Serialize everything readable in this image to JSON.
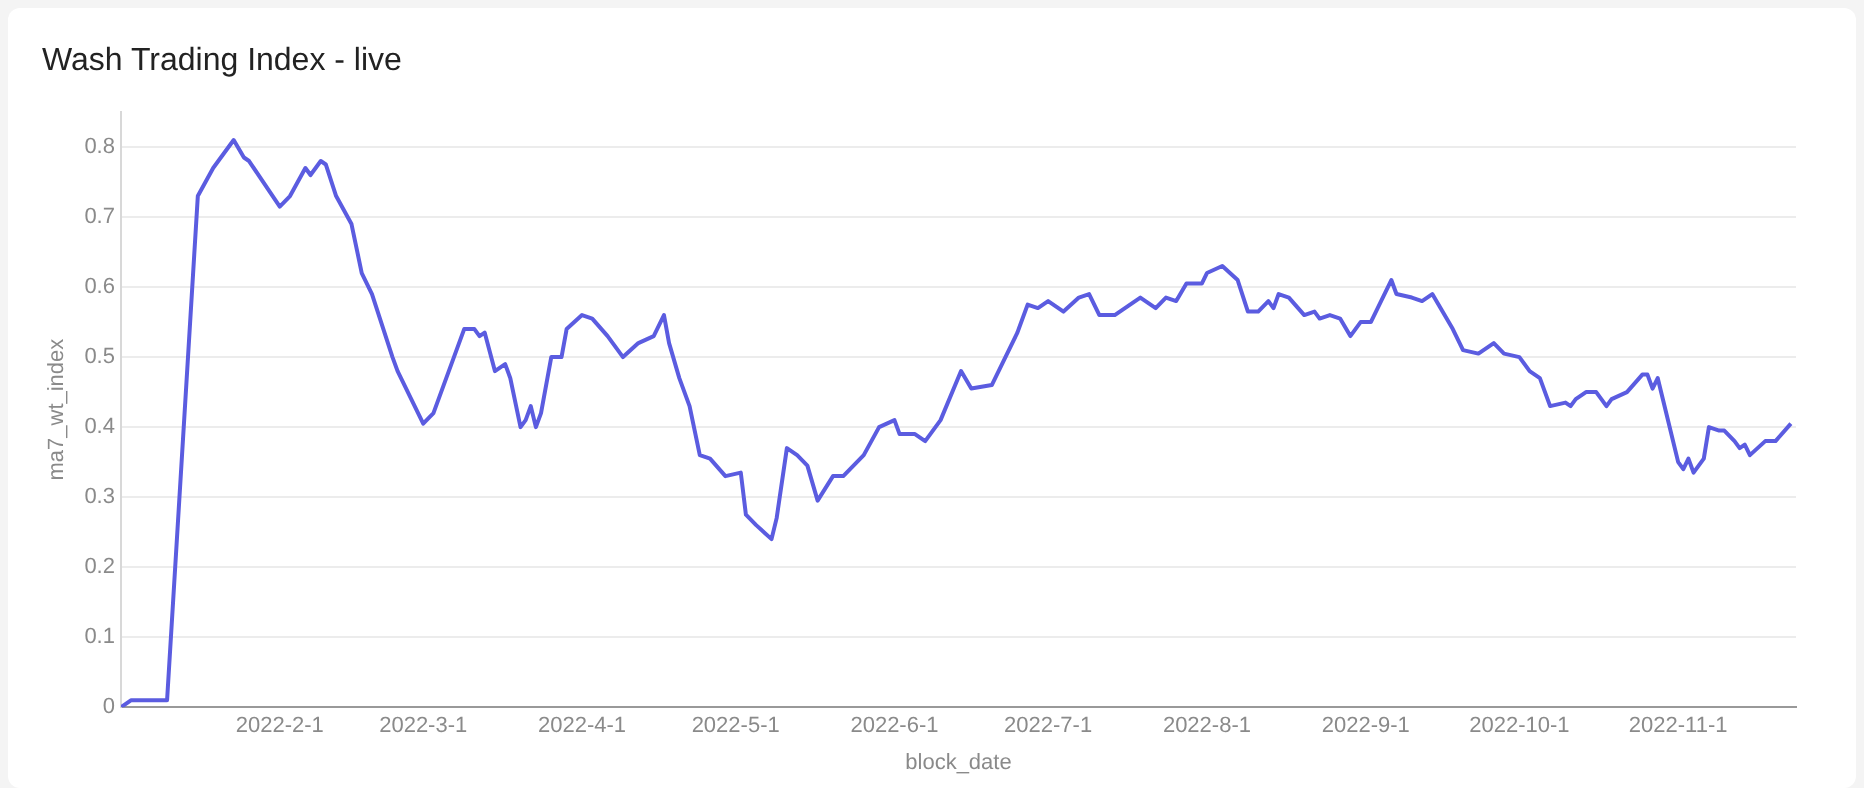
{
  "chart_data": {
    "type": "line",
    "title": "Wash Trading Index - live",
    "xlabel": "block_date",
    "ylabel": "ma7_wt_index",
    "x": [
      "2022-01-01",
      "2022-01-03",
      "2022-01-06",
      "2022-01-10",
      "2022-01-16",
      "2022-01-19",
      "2022-01-20",
      "2022-01-23",
      "2022-01-25",
      "2022-01-26",
      "2022-02-01",
      "2022-02-03",
      "2022-02-06",
      "2022-02-07",
      "2022-02-09",
      "2022-02-10",
      "2022-02-12",
      "2022-02-15",
      "2022-02-17",
      "2022-02-19",
      "2022-02-23",
      "2022-02-24",
      "2022-03-01",
      "2022-03-03",
      "2022-03-07",
      "2022-03-09",
      "2022-03-11",
      "2022-03-12",
      "2022-03-13",
      "2022-03-15",
      "2022-03-17",
      "2022-03-18",
      "2022-03-20",
      "2022-03-21",
      "2022-03-22",
      "2022-03-23",
      "2022-03-24",
      "2022-03-26",
      "2022-03-28",
      "2022-03-29",
      "2022-04-01",
      "2022-04-03",
      "2022-04-06",
      "2022-04-09",
      "2022-04-12",
      "2022-04-15",
      "2022-04-17",
      "2022-04-18",
      "2022-04-20",
      "2022-04-22",
      "2022-04-24",
      "2022-04-26",
      "2022-04-29",
      "2022-05-02",
      "2022-05-03",
      "2022-05-05",
      "2022-05-08",
      "2022-05-09",
      "2022-05-11",
      "2022-05-13",
      "2022-05-15",
      "2022-05-17",
      "2022-05-20",
      "2022-05-22",
      "2022-05-24",
      "2022-05-26",
      "2022-05-29",
      "2022-06-01",
      "2022-06-02",
      "2022-06-05",
      "2022-06-07",
      "2022-06-10",
      "2022-06-14",
      "2022-06-16",
      "2022-06-20",
      "2022-06-22",
      "2022-06-25",
      "2022-06-27",
      "2022-06-29",
      "2022-07-01",
      "2022-07-04",
      "2022-07-07",
      "2022-07-09",
      "2022-07-11",
      "2022-07-14",
      "2022-07-19",
      "2022-07-22",
      "2022-07-24",
      "2022-07-26",
      "2022-07-28",
      "2022-07-31",
      "2022-08-01",
      "2022-08-04",
      "2022-08-07",
      "2022-08-09",
      "2022-08-11",
      "2022-08-13",
      "2022-08-14",
      "2022-08-15",
      "2022-08-17",
      "2022-08-20",
      "2022-08-22",
      "2022-08-23",
      "2022-08-25",
      "2022-08-27",
      "2022-08-29",
      "2022-08-31",
      "2022-09-02",
      "2022-09-04",
      "2022-09-06",
      "2022-09-07",
      "2022-09-10",
      "2022-09-12",
      "2022-09-14",
      "2022-09-18",
      "2022-09-20",
      "2022-09-23",
      "2022-09-26",
      "2022-09-28",
      "2022-10-01",
      "2022-10-03",
      "2022-10-05",
      "2022-10-07",
      "2022-10-10",
      "2022-10-11",
      "2022-10-12",
      "2022-10-14",
      "2022-10-16",
      "2022-10-18",
      "2022-10-19",
      "2022-10-22",
      "2022-10-25",
      "2022-10-26",
      "2022-10-27",
      "2022-10-28",
      "2022-10-29",
      "2022-11-01",
      "2022-11-02",
      "2022-11-03",
      "2022-11-04",
      "2022-11-06",
      "2022-11-07",
      "2022-11-09",
      "2022-11-10",
      "2022-11-12",
      "2022-11-13",
      "2022-11-14",
      "2022-11-15",
      "2022-11-18",
      "2022-11-20",
      "2022-11-23"
    ],
    "series": [
      {
        "color": "#5b5ce0",
        "values": [
          0,
          0.01,
          0.01,
          0.01,
          0.73,
          0.77,
          0.78,
          0.81,
          0.785,
          0.78,
          0.715,
          0.73,
          0.77,
          0.76,
          0.78,
          0.775,
          0.73,
          0.69,
          0.62,
          0.59,
          0.5,
          0.48,
          0.405,
          0.42,
          0.5,
          0.54,
          0.54,
          0.53,
          0.535,
          0.48,
          0.49,
          0.47,
          0.4,
          0.41,
          0.43,
          0.4,
          0.42,
          0.5,
          0.5,
          0.54,
          0.56,
          0.555,
          0.53,
          0.5,
          0.52,
          0.53,
          0.56,
          0.52,
          0.47,
          0.43,
          0.36,
          0.355,
          0.33,
          0.335,
          0.275,
          0.26,
          0.24,
          0.27,
          0.37,
          0.36,
          0.345,
          0.295,
          0.33,
          0.33,
          0.345,
          0.36,
          0.4,
          0.41,
          0.39,
          0.39,
          0.38,
          0.41,
          0.48,
          0.455,
          0.46,
          0.49,
          0.535,
          0.575,
          0.57,
          0.58,
          0.565,
          0.585,
          0.59,
          0.56,
          0.56,
          0.585,
          0.57,
          0.585,
          0.58,
          0.605,
          0.605,
          0.62,
          0.63,
          0.61,
          0.565,
          0.565,
          0.58,
          0.57,
          0.59,
          0.585,
          0.56,
          0.565,
          0.555,
          0.56,
          0.555,
          0.53,
          0.55,
          0.55,
          0.58,
          0.61,
          0.59,
          0.585,
          0.58,
          0.59,
          0.54,
          0.51,
          0.505,
          0.52,
          0.505,
          0.5,
          0.48,
          0.47,
          0.43,
          0.435,
          0.43,
          0.44,
          0.45,
          0.45,
          0.43,
          0.44,
          0.45,
          0.475,
          0.475,
          0.455,
          0.47,
          0.44,
          0.35,
          0.34,
          0.355,
          0.335,
          0.355,
          0.4,
          0.395,
          0.395,
          0.38,
          0.37,
          0.375,
          0.36,
          0.38,
          0.38,
          0.405
        ]
      }
    ],
    "xlim": [
      "2022-01-01",
      "2022-11-24"
    ],
    "xticks": [
      {
        "value": "2022-02-01",
        "label": "2022-2-1"
      },
      {
        "value": "2022-03-01",
        "label": "2022-3-1"
      },
      {
        "value": "2022-04-01",
        "label": "2022-4-1"
      },
      {
        "value": "2022-05-01",
        "label": "2022-5-1"
      },
      {
        "value": "2022-06-01",
        "label": "2022-6-1"
      },
      {
        "value": "2022-07-01",
        "label": "2022-7-1"
      },
      {
        "value": "2022-08-01",
        "label": "2022-8-1"
      },
      {
        "value": "2022-09-01",
        "label": "2022-9-1"
      },
      {
        "value": "2022-10-01",
        "label": "2022-10-1"
      },
      {
        "value": "2022-11-01",
        "label": "2022-11-1"
      }
    ],
    "ylim": [
      0,
      0.85
    ],
    "yticks": [
      0,
      0.1,
      0.2,
      0.3,
      0.4,
      0.5,
      0.6,
      0.7,
      0.8
    ],
    "grid": "y",
    "legend": false,
    "marker": "none",
    "line_style": "solid"
  }
}
